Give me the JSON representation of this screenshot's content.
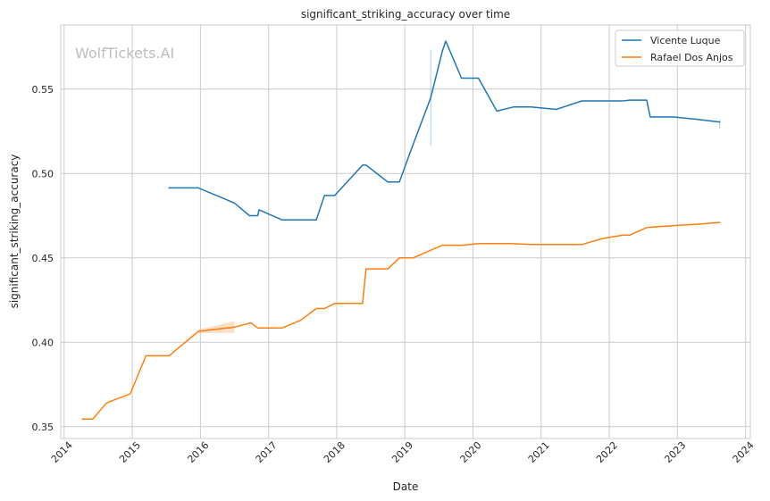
{
  "chart_data": {
    "type": "line",
    "title": "significant_striking_accuracy over time",
    "xlabel": "Date",
    "ylabel": "significant_striking_accuracy",
    "watermark": "WolfTickets.AI",
    "xlim": [
      2013.95,
      2024.07
    ],
    "ylim": [
      0.343,
      0.588
    ],
    "x_ticks": [
      2014,
      2015,
      2016,
      2017,
      2018,
      2019,
      2020,
      2021,
      2022,
      2023,
      2024
    ],
    "y_ticks": [
      0.35,
      0.4,
      0.45,
      0.5,
      0.55
    ],
    "y_tick_labels": [
      "0.35",
      "0.40",
      "0.45",
      "0.50",
      "0.55"
    ],
    "grid": true,
    "legend_position": "top-right",
    "series": [
      {
        "name": "Vicente Luque",
        "color": "#1f77b4",
        "x": [
          2015.54,
          2015.97,
          2016.5,
          2016.72,
          2016.84,
          2016.86,
          2017.2,
          2017.7,
          2017.82,
          2017.97,
          2018.38,
          2018.43,
          2018.75,
          2018.92,
          2019.1,
          2019.38,
          2019.55,
          2019.6,
          2019.83,
          2020.08,
          2020.35,
          2020.6,
          2020.85,
          2021.22,
          2021.6,
          2021.9,
          2022.2,
          2022.3,
          2022.55,
          2022.6,
          2022.95,
          2023.3,
          2023.62
        ],
        "y": [
          0.4915,
          0.4915,
          0.4825,
          0.475,
          0.475,
          0.4785,
          0.4725,
          0.4725,
          0.487,
          0.487,
          0.505,
          0.505,
          0.495,
          0.495,
          0.515,
          0.545,
          0.5725,
          0.5785,
          0.5565,
          0.5565,
          0.537,
          0.5395,
          0.5395,
          0.538,
          0.543,
          0.543,
          0.543,
          0.5435,
          0.5435,
          0.5335,
          0.5335,
          0.532,
          0.5305
        ]
      },
      {
        "name": "Rafael Dos Anjos",
        "color": "#ff7f0e",
        "x": [
          2014.27,
          2014.42,
          2014.62,
          2014.97,
          2015.2,
          2015.54,
          2015.97,
          2016.5,
          2016.74,
          2016.84,
          2017.2,
          2017.47,
          2017.7,
          2017.82,
          2017.97,
          2018.38,
          2018.43,
          2018.75,
          2018.92,
          2019.12,
          2019.55,
          2019.85,
          2020.08,
          2020.55,
          2020.85,
          2021.6,
          2021.9,
          2022.2,
          2022.3,
          2022.55,
          2022.9,
          2023.3,
          2023.62
        ],
        "y": [
          0.3545,
          0.3545,
          0.364,
          0.3695,
          0.392,
          0.392,
          0.4065,
          0.409,
          0.4115,
          0.4085,
          0.4085,
          0.413,
          0.42,
          0.42,
          0.423,
          0.423,
          0.4435,
          0.4435,
          0.45,
          0.45,
          0.4575,
          0.4575,
          0.4585,
          0.4585,
          0.458,
          0.458,
          0.4615,
          0.4635,
          0.4635,
          0.468,
          0.469,
          0.47,
          0.471
        ]
      }
    ],
    "uncertainty_marks": [
      {
        "series": "Vicente Luque",
        "x": 2019.38,
        "y_low": 0.5165,
        "y_high": 0.5735
      },
      {
        "series": "Vicente Luque",
        "x": 2023.62,
        "y_low": 0.5265,
        "y_high": 0.532
      },
      {
        "series": "Rafael Dos Anjos",
        "x_start": 2015.97,
        "x_end": 2016.5,
        "y_low_start": 0.4055,
        "y_high_start": 0.4075,
        "y_low_end": 0.4055,
        "y_high_end": 0.4125
      }
    ]
  }
}
